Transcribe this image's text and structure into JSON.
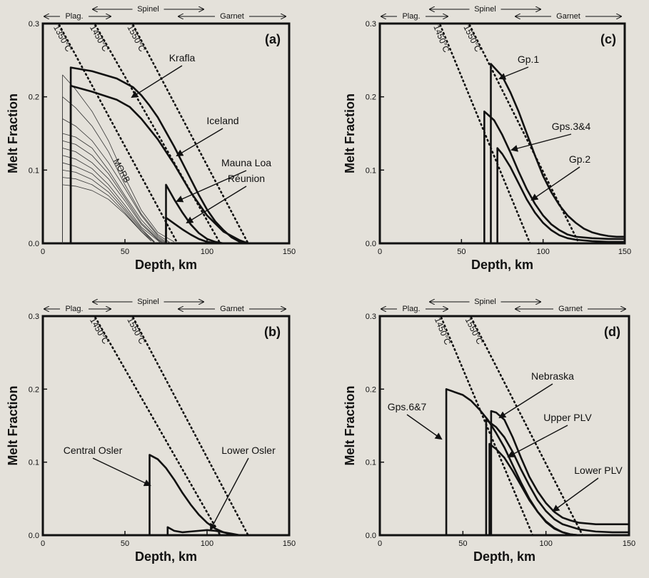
{
  "chart_data": [
    {
      "panel": "a",
      "type": "line",
      "panel_label": "(a)",
      "xlabel": "Depth, km",
      "ylabel": "Melt Fraction",
      "xlim": [
        0,
        150
      ],
      "ylim": [
        0,
        0.3
      ],
      "xticks": [
        "0",
        "50",
        "100",
        "150"
      ],
      "yticks": [
        "0.0",
        "0.1",
        "0.2",
        "0.3"
      ],
      "top_bar": {
        "plag": "Plag.",
        "spinel": "Spinel",
        "garnet": "Garnet"
      },
      "isotherms": [
        {
          "label": "1350°C",
          "x0": 10,
          "x1": 82
        },
        {
          "label": "1450°C",
          "x0": 32,
          "x1": 108
        },
        {
          "label": "1550°C",
          "x0": 55,
          "x1": 125
        }
      ],
      "curves": [
        {
          "name": "Krafla",
          "onset": 17,
          "x": [
            17,
            30,
            45,
            55,
            60,
            65,
            70,
            75,
            80,
            85,
            90,
            95,
            100,
            105,
            110,
            115,
            120,
            125
          ],
          "y": [
            0.24,
            0.235,
            0.225,
            0.213,
            0.202,
            0.188,
            0.172,
            0.152,
            0.132,
            0.11,
            0.088,
            0.066,
            0.046,
            0.03,
            0.018,
            0.008,
            0.002,
            0.0
          ]
        },
        {
          "name": "Iceland",
          "onset": 17,
          "x": [
            17,
            30,
            45,
            53,
            60,
            70,
            80,
            90,
            100,
            110,
            120,
            125
          ],
          "y": [
            0.215,
            0.207,
            0.196,
            0.186,
            0.17,
            0.142,
            0.108,
            0.07,
            0.038,
            0.016,
            0.004,
            0.0
          ]
        },
        {
          "name": "Mauna Loa",
          "onset": 75,
          "x": [
            75,
            80,
            85,
            90,
            95,
            100,
            105,
            110
          ],
          "y": [
            0.08,
            0.06,
            0.042,
            0.026,
            0.014,
            0.006,
            0.002,
            0.0
          ]
        },
        {
          "name": "Réunion",
          "onset": 75,
          "x": [
            75,
            80,
            85,
            90,
            95,
            100,
            105,
            110
          ],
          "y": [
            0.035,
            0.027,
            0.019,
            0.012,
            0.006,
            0.002,
            0.0005,
            0.0
          ]
        }
      ],
      "morb_label": "MORB",
      "curve_labels": [
        "Krafla",
        "Iceland",
        "Mauna Loa",
        "Réunion"
      ]
    },
    {
      "panel": "b",
      "type": "line",
      "panel_label": "(b)",
      "xlabel": "Depth, km",
      "ylabel": "Melt Fraction",
      "xlim": [
        0,
        150
      ],
      "ylim": [
        0,
        0.3
      ],
      "xticks": [
        "0",
        "50",
        "100",
        "150"
      ],
      "yticks": [
        "0.0",
        "0.1",
        "0.2",
        "0.3"
      ],
      "top_bar": {
        "plag": "Plag.",
        "spinel": "Spinel",
        "garnet": "Garnet"
      },
      "isotherms": [
        {
          "label": "1450°C",
          "x0": 32,
          "x1": 108
        },
        {
          "label": "1550°C",
          "x0": 55,
          "x1": 125
        }
      ],
      "curves": [
        {
          "name": "Central Osler",
          "onset": 65,
          "x": [
            65,
            70,
            75,
            80,
            85,
            90,
            95,
            100,
            105,
            110,
            115,
            120
          ],
          "y": [
            0.11,
            0.104,
            0.092,
            0.076,
            0.058,
            0.042,
            0.028,
            0.017,
            0.009,
            0.004,
            0.001,
            0.0
          ]
        },
        {
          "name": "Lower Osler",
          "onset": 76,
          "x": [
            76,
            80,
            85,
            90,
            95,
            100,
            105,
            110,
            115,
            120
          ],
          "y": [
            0.011,
            0.006,
            0.004,
            0.005,
            0.006,
            0.007,
            0.006,
            0.004,
            0.002,
            0.0
          ]
        }
      ],
      "curve_labels": [
        "Central Osler",
        "Lower Osler"
      ]
    },
    {
      "panel": "c",
      "type": "line",
      "panel_label": "(c)",
      "xlabel": "Depth, km",
      "ylabel": "Melt Fraction",
      "xlim": [
        0,
        150
      ],
      "ylim": [
        0,
        0.3
      ],
      "xticks": [
        "0",
        "50",
        "100",
        "150"
      ],
      "yticks": [
        "0.0",
        "0.1",
        "0.2",
        "0.3"
      ],
      "top_bar": {
        "plag": "Plag.",
        "spinel": "Spinel",
        "garnet": "Garnet"
      },
      "isotherms": [
        {
          "label": "1450°C",
          "x0": 37,
          "x1": 92
        },
        {
          "label": "1550°C",
          "x0": 55,
          "x1": 122
        }
      ],
      "curves": [
        {
          "name": "Gp.1",
          "onset": 68,
          "x": [
            68,
            75,
            80,
            85,
            90,
            95,
            100,
            105,
            110,
            115,
            120,
            125,
            130,
            135,
            140,
            145,
            150
          ],
          "y": [
            0.245,
            0.228,
            0.206,
            0.18,
            0.15,
            0.12,
            0.092,
            0.07,
            0.052,
            0.038,
            0.028,
            0.02,
            0.015,
            0.012,
            0.01,
            0.009,
            0.009
          ]
        },
        {
          "name": "Gps.3&4",
          "onset": 64,
          "x": [
            64,
            70,
            75,
            80,
            85,
            90,
            95,
            100,
            105,
            110,
            115,
            120,
            130,
            140,
            150
          ],
          "y": [
            0.18,
            0.168,
            0.148,
            0.124,
            0.098,
            0.074,
            0.054,
            0.038,
            0.026,
            0.018,
            0.012,
            0.009,
            0.007,
            0.006,
            0.006
          ]
        },
        {
          "name": "Gp.2",
          "onset": 72,
          "x": [
            72,
            75,
            80,
            85,
            90,
            95,
            100,
            105,
            110,
            115,
            120,
            130,
            140,
            150
          ],
          "y": [
            0.13,
            0.122,
            0.104,
            0.082,
            0.06,
            0.042,
            0.028,
            0.018,
            0.011,
            0.007,
            0.005,
            0.003,
            0.002,
            0.002
          ]
        }
      ],
      "curve_labels": [
        "Gp.1",
        "Gps.3&4",
        "Gp.2"
      ]
    },
    {
      "panel": "d",
      "type": "line",
      "panel_label": "(d)",
      "xlabel": "Depth, km",
      "ylabel": "Melt Fraction",
      "xlim": [
        0,
        150
      ],
      "ylim": [
        0,
        0.3
      ],
      "xticks": [
        "0",
        "50",
        "100",
        "150"
      ],
      "yticks": [
        "0.0",
        "0.1",
        "0.2",
        "0.3"
      ],
      "top_bar": {
        "plag": "Plag.",
        "spinel": "Spinel",
        "garnet": "Garnet"
      },
      "isotherms": [
        {
          "label": "1450°C",
          "x0": 37,
          "x1": 92
        },
        {
          "label": "1550°C",
          "x0": 55,
          "x1": 122
        }
      ],
      "curves": [
        {
          "name": "Gps.6&7",
          "onset": 40,
          "x": [
            40,
            50,
            55,
            60,
            65,
            70,
            75,
            80,
            85,
            90,
            95,
            100,
            105,
            110,
            115,
            120
          ],
          "y": [
            0.2,
            0.192,
            0.184,
            0.172,
            0.158,
            0.14,
            0.12,
            0.096,
            0.072,
            0.05,
            0.032,
            0.018,
            0.009,
            0.004,
            0.001,
            0.0
          ]
        },
        {
          "name": "Nebraska",
          "onset": 67,
          "x": [
            67,
            70,
            75,
            80,
            85,
            90,
            95,
            100,
            105,
            110,
            115,
            120,
            130,
            140,
            150
          ],
          "y": [
            0.17,
            0.168,
            0.158,
            0.134,
            0.106,
            0.08,
            0.06,
            0.044,
            0.032,
            0.024,
            0.02,
            0.017,
            0.015,
            0.015,
            0.015
          ]
        },
        {
          "name": "Upper PLV",
          "onset": 64,
          "x": [
            64,
            70,
            75,
            80,
            85,
            90,
            95,
            100,
            105,
            110,
            120,
            130,
            140,
            150
          ],
          "y": [
            0.158,
            0.148,
            0.134,
            0.114,
            0.09,
            0.068,
            0.048,
            0.033,
            0.022,
            0.015,
            0.008,
            0.005,
            0.004,
            0.004
          ]
        },
        {
          "name": "Lower PLV",
          "onset": 66,
          "x": [
            66,
            70,
            75,
            80,
            85,
            90,
            95,
            100,
            105,
            110,
            115,
            120
          ],
          "y": [
            0.125,
            0.118,
            0.106,
            0.088,
            0.068,
            0.048,
            0.032,
            0.019,
            0.01,
            0.004,
            0.001,
            0.0
          ]
        }
      ],
      "curve_labels": [
        "Gps.6&7",
        "Nebraska",
        "Upper PLV",
        "Lower PLV"
      ]
    }
  ]
}
